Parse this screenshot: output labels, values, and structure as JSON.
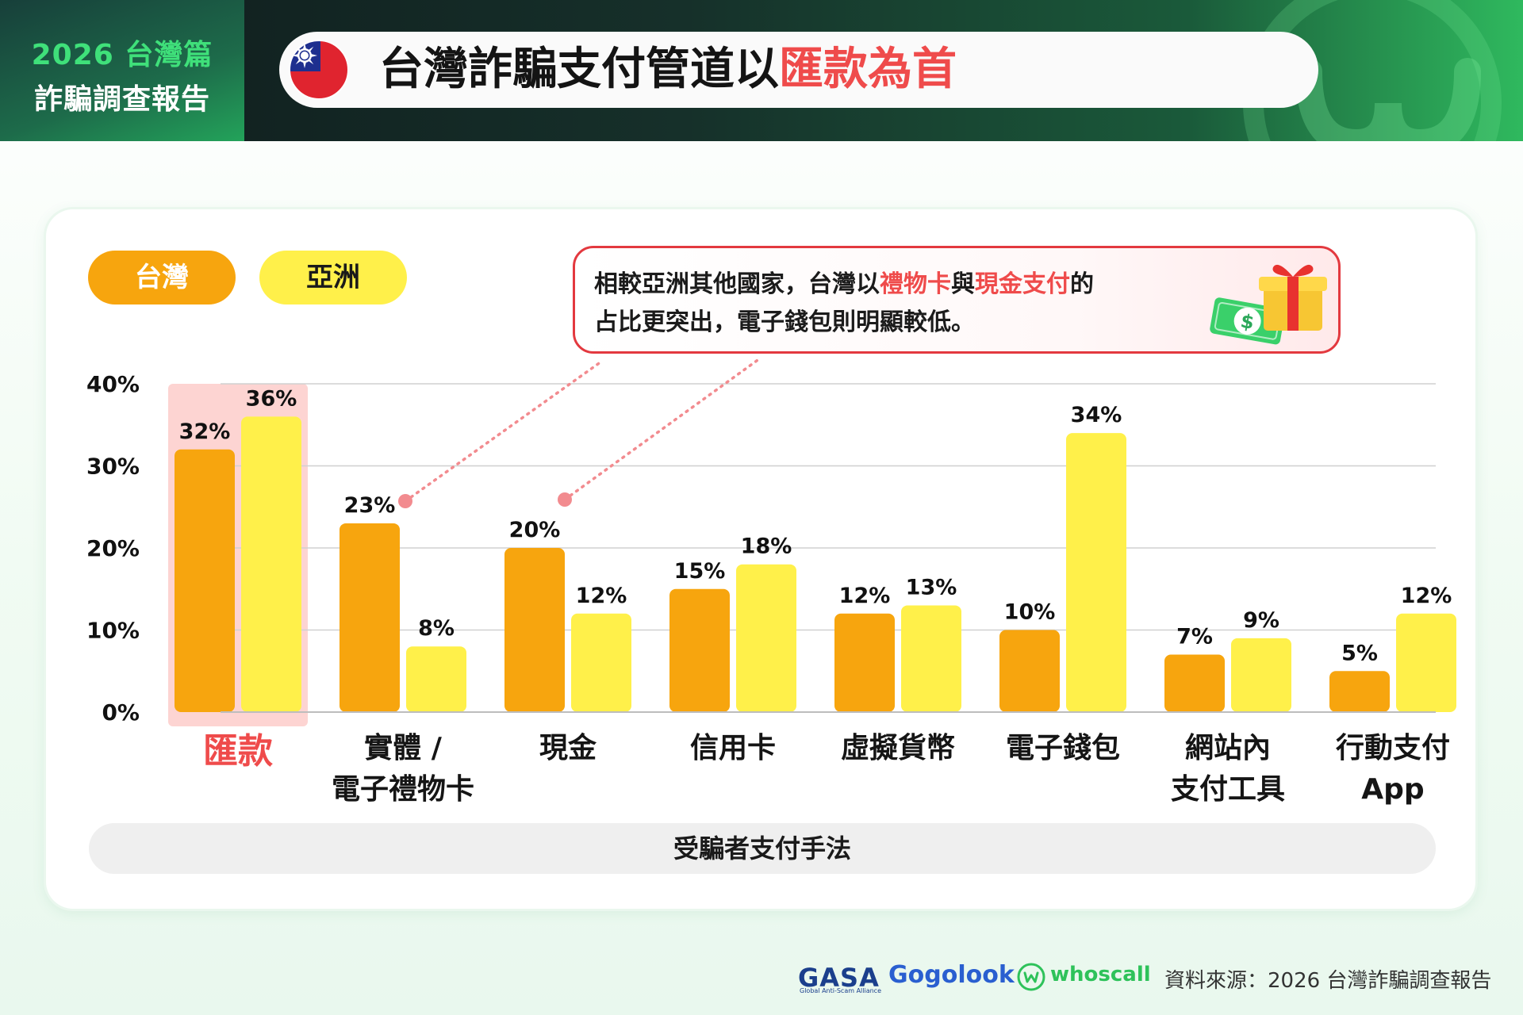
{
  "header": {
    "report_year": "2026 台灣篇",
    "report_name": "詐騙調查報告",
    "title_main": "台灣詐騙支付管道以",
    "title_highlight": "匯款為首",
    "flag_icon": "taiwan-flag-icon"
  },
  "legend": {
    "taiwan": "台灣",
    "asia": "亞洲"
  },
  "callout": {
    "line1_a": "相較亞洲其他國家，台灣以",
    "line1_hl1": "禮物卡",
    "line1_b": "與",
    "line1_hl2": "現金支付",
    "line1_c": "的",
    "line2": "占比更突出，電子錢包則明顯較低。",
    "icon": "gift-and-money-icon"
  },
  "chart_data": {
    "type": "bar",
    "categories": [
      "匯款",
      "實體 / 電子禮物卡",
      "現金",
      "信用卡",
      "虛擬貨幣",
      "電子錢包",
      "網站內 支付工具",
      "行動支付 App"
    ],
    "category_lines": [
      [
        "匯款"
      ],
      [
        "實體 /",
        "電子禮物卡"
      ],
      [
        "現金"
      ],
      [
        "信用卡"
      ],
      [
        "虛擬貨幣"
      ],
      [
        "電子錢包"
      ],
      [
        "網站內",
        "支付工具"
      ],
      [
        "行動支付",
        "App"
      ]
    ],
    "highlighted_category": "匯款",
    "series": [
      {
        "name": "台灣",
        "values": [
          32,
          23,
          20,
          15,
          12,
          10,
          7,
          5
        ],
        "color": "#f7a50e"
      },
      {
        "name": "亞洲",
        "values": [
          36,
          8,
          12,
          18,
          13,
          34,
          9,
          12
        ],
        "color": "#fff04a"
      }
    ],
    "value_labels": [
      [
        "32%",
        "23%",
        "20%",
        "15%",
        "12%",
        "10%",
        "7%",
        "5%"
      ],
      [
        "36%",
        "8%",
        "12%",
        "18%",
        "13%",
        "34%",
        "9%",
        "12%"
      ]
    ],
    "yticks": [
      "0%",
      "10%",
      "20%",
      "30%",
      "40%"
    ],
    "ylim": [
      0,
      40
    ],
    "xlabel": "受騙者支付手法",
    "ylabel": "",
    "grid": true,
    "legend_position": "top-left"
  },
  "colors": {
    "taiwan": "#f7a50e",
    "asia": "#fff04a",
    "highlight": "#ef4b4b",
    "highlight_band": "#fdd4d2",
    "brand_green": "#2ec25a"
  },
  "footer": {
    "logo_gasa": "GASA",
    "logo_gasa_sub": "Global Anti-Scam Alliance",
    "logo_gogolook": "Gogolook",
    "logo_whoscall": "whoscall",
    "whoscall_icon": "whoscall-w-icon",
    "source": "資料來源：2026 台灣詐騙調查報告"
  }
}
